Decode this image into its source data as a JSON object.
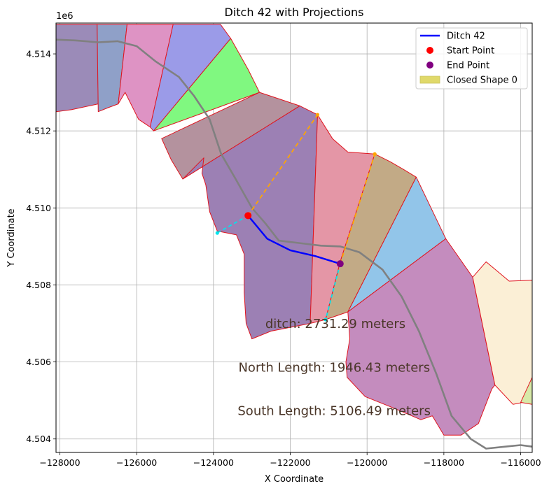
{
  "chart_data": {
    "type": "line",
    "title": "Ditch 42 with Projections",
    "xlabel": "X Coordinate",
    "ylabel": "Y Coordinate",
    "y_offset_label": "1e6",
    "xlim": [
      -128100,
      -115700
    ],
    "ylim": [
      4.50365,
      4.5148
    ],
    "x_ticks": [
      -128000,
      -126000,
      -124000,
      -122000,
      -120000,
      -118000,
      -116000
    ],
    "x_tick_labels": [
      "−128000",
      "−126000",
      "−124000",
      "−122000",
      "−120000",
      "−118000",
      "−116000"
    ],
    "y_ticks": [
      4.504,
      4.506,
      4.508,
      4.51,
      4.512,
      4.514
    ],
    "y_tick_labels": [
      "4.504",
      "4.506",
      "4.508",
      "4.510",
      "4.512",
      "4.514"
    ],
    "grid": true,
    "legend_position": "upper right",
    "legend": [
      {
        "label": "Ditch 42",
        "kind": "line",
        "color": "#0000ff"
      },
      {
        "label": "Start Point",
        "kind": "marker",
        "color": "#ff0000"
      },
      {
        "label": "End Point",
        "kind": "marker",
        "color": "#800080"
      },
      {
        "label": "Closed Shape 0",
        "kind": "patch",
        "color": "#e0d96a"
      }
    ],
    "polygons": [
      {
        "name": "zone-a",
        "fill": "#9b8bb8",
        "points": [
          [
            -128100,
            4.51477
          ],
          [
            -127030,
            4.51477
          ],
          [
            -127000,
            4.5127
          ],
          [
            -127700,
            4.51255
          ],
          [
            -128100,
            4.5125
          ]
        ]
      },
      {
        "name": "zone-b",
        "fill": "#8fa0c8",
        "points": [
          [
            -127030,
            4.51477
          ],
          [
            -126250,
            4.51477
          ],
          [
            -126480,
            4.5127
          ],
          [
            -126750,
            4.5126
          ],
          [
            -127000,
            4.5125
          ]
        ]
      },
      {
        "name": "zone-c",
        "fill": "#de93c4",
        "points": [
          [
            -126250,
            4.51477
          ],
          [
            -125050,
            4.51477
          ],
          [
            -125650,
            4.5121
          ],
          [
            -125950,
            4.5123
          ],
          [
            -126300,
            4.513
          ],
          [
            -126480,
            4.5127
          ]
        ]
      },
      {
        "name": "zone-d",
        "fill": "#9b9be8",
        "points": [
          [
            -125050,
            4.51477
          ],
          [
            -123820,
            4.51477
          ],
          [
            -123550,
            4.5144
          ],
          [
            -125560,
            4.512
          ],
          [
            -125650,
            4.5121
          ]
        ]
      },
      {
        "name": "zone-e",
        "fill": "#80f880",
        "points": [
          [
            -123550,
            4.5144
          ],
          [
            -123100,
            4.5136
          ],
          [
            -122800,
            4.513
          ],
          [
            -125560,
            4.512
          ]
        ]
      },
      {
        "name": "zone-f",
        "fill": "#b4929e",
        "points": [
          [
            -122800,
            4.513
          ],
          [
            -121750,
            4.51265
          ],
          [
            -124800,
            4.51075
          ],
          [
            -125100,
            4.51125
          ],
          [
            -125350,
            4.5118
          ]
        ]
      },
      {
        "name": "zone-g",
        "fill": "#9c80b4",
        "points": [
          [
            -121750,
            4.51265
          ],
          [
            -121290,
            4.51242
          ],
          [
            -121480,
            4.507
          ],
          [
            -122500,
            4.5068
          ],
          [
            -123000,
            4.5066
          ],
          [
            -123150,
            4.507
          ],
          [
            -123200,
            4.5078
          ],
          [
            -123200,
            4.5088
          ],
          [
            -123400,
            4.5093
          ],
          [
            -123900,
            4.5094
          ],
          [
            -124100,
            4.5099
          ],
          [
            -124200,
            4.5106
          ],
          [
            -124300,
            4.5109
          ],
          [
            -124250,
            4.5113
          ],
          [
            -124800,
            4.51075
          ]
        ]
      },
      {
        "name": "zone-h",
        "fill": "#e496a6",
        "points": [
          [
            -121290,
            4.51242
          ],
          [
            -120900,
            4.5118
          ],
          [
            -120500,
            4.51145
          ],
          [
            -119800,
            4.5114
          ],
          [
            -120700,
            4.5086
          ],
          [
            -121080,
            4.5071
          ],
          [
            -121480,
            4.507
          ]
        ]
      },
      {
        "name": "zone-i",
        "fill": "#c2aa86",
        "points": [
          [
            -119800,
            4.5114
          ],
          [
            -119400,
            4.5112
          ],
          [
            -119050,
            4.511
          ],
          [
            -118720,
            4.5108
          ],
          [
            -120500,
            4.5073
          ],
          [
            -121080,
            4.5071
          ],
          [
            -120700,
            4.5086
          ]
        ]
      },
      {
        "name": "zone-j",
        "fill": "#92c5e9",
        "points": [
          [
            -118720,
            4.5108
          ],
          [
            -117950,
            4.5092
          ],
          [
            -120500,
            4.5073
          ]
        ]
      },
      {
        "name": "zone-k",
        "fill": "#c48cbe",
        "points": [
          [
            -117950,
            4.5092
          ],
          [
            -117250,
            4.5082
          ],
          [
            -116670,
            4.5054
          ],
          [
            -116750,
            4.5053
          ],
          [
            -117100,
            4.5044
          ],
          [
            -117550,
            4.5041
          ],
          [
            -118000,
            4.5041
          ],
          [
            -118300,
            4.5046
          ],
          [
            -118600,
            4.5045
          ],
          [
            -119300,
            4.5048
          ],
          [
            -120050,
            4.5051
          ],
          [
            -120520,
            4.5056
          ],
          [
            -120550,
            4.506
          ],
          [
            -120450,
            4.5066
          ],
          [
            -120500,
            4.5073
          ]
        ]
      },
      {
        "name": "zone-l",
        "fill": "#fbefd6",
        "points": [
          [
            -117250,
            4.5082
          ],
          [
            -116900,
            4.5086
          ],
          [
            -116300,
            4.5081
          ],
          [
            -115700,
            4.50812
          ],
          [
            -115700,
            4.505
          ],
          [
            -116200,
            4.5049
          ],
          [
            -116670,
            4.5054
          ]
        ]
      },
      {
        "name": "zone-m",
        "fill": "#d7e9a8",
        "points": [
          [
            -115700,
            4.5056
          ],
          [
            -116000,
            4.50495
          ],
          [
            -115700,
            4.5049
          ]
        ]
      }
    ],
    "river": [
      [
        -128100,
        4.51437
      ],
      [
        -127600,
        4.51435
      ],
      [
        -127000,
        4.5143
      ],
      [
        -126500,
        4.51433
      ],
      [
        -126000,
        4.5142
      ],
      [
        -125500,
        4.5138
      ],
      [
        -124900,
        4.5134
      ],
      [
        -124500,
        4.5129
      ],
      [
        -124100,
        4.5123
      ],
      [
        -123800,
        4.5114
      ],
      [
        -123450,
        4.5108
      ],
      [
        -123000,
        4.51
      ],
      [
        -122650,
        4.5096
      ],
      [
        -122300,
        4.50915
      ],
      [
        -121700,
        4.50908
      ],
      [
        -121200,
        4.50902
      ],
      [
        -120700,
        4.509
      ],
      [
        -120200,
        4.50885
      ],
      [
        -119600,
        4.5084
      ],
      [
        -119100,
        4.5077
      ],
      [
        -118650,
        4.5068
      ],
      [
        -118200,
        4.5057
      ],
      [
        -117800,
        4.5046
      ],
      [
        -117300,
        4.504
      ],
      [
        -116900,
        4.50375
      ],
      [
        -116400,
        4.5038
      ],
      [
        -116000,
        4.50384
      ],
      [
        -115700,
        4.5038
      ]
    ],
    "ditch": [
      [
        -123100,
        4.5098
      ],
      [
        -122600,
        4.5092
      ],
      [
        -122000,
        4.5089
      ],
      [
        -121350,
        4.50875
      ],
      [
        -120700,
        4.50855
      ]
    ],
    "start_point": [
      -123100,
      4.5098
    ],
    "end_point": [
      -120700,
      4.50855
    ],
    "north_projection": [
      [
        -123100,
        4.5098
      ],
      [
        -121290,
        4.51242
      ]
    ],
    "north_projection_east": [
      [
        -120700,
        4.50855
      ],
      [
        -119800,
        4.5114
      ]
    ],
    "south_projection": [
      [
        -123100,
        4.5098
      ],
      [
        -123900,
        4.50935
      ]
    ],
    "south_projection_east": [
      [
        -120700,
        4.50855
      ],
      [
        -121080,
        4.5071
      ]
    ],
    "annotations": [
      {
        "text": "ditch: 2731.29 meters",
        "x": -122650,
        "y": 4.50688
      },
      {
        "text": "North Length: 1946.43 meters",
        "x": -123350,
        "y": 4.50575
      },
      {
        "text": "South Length: 5106.49 meters",
        "x": -123370,
        "y": 4.50462
      }
    ]
  }
}
